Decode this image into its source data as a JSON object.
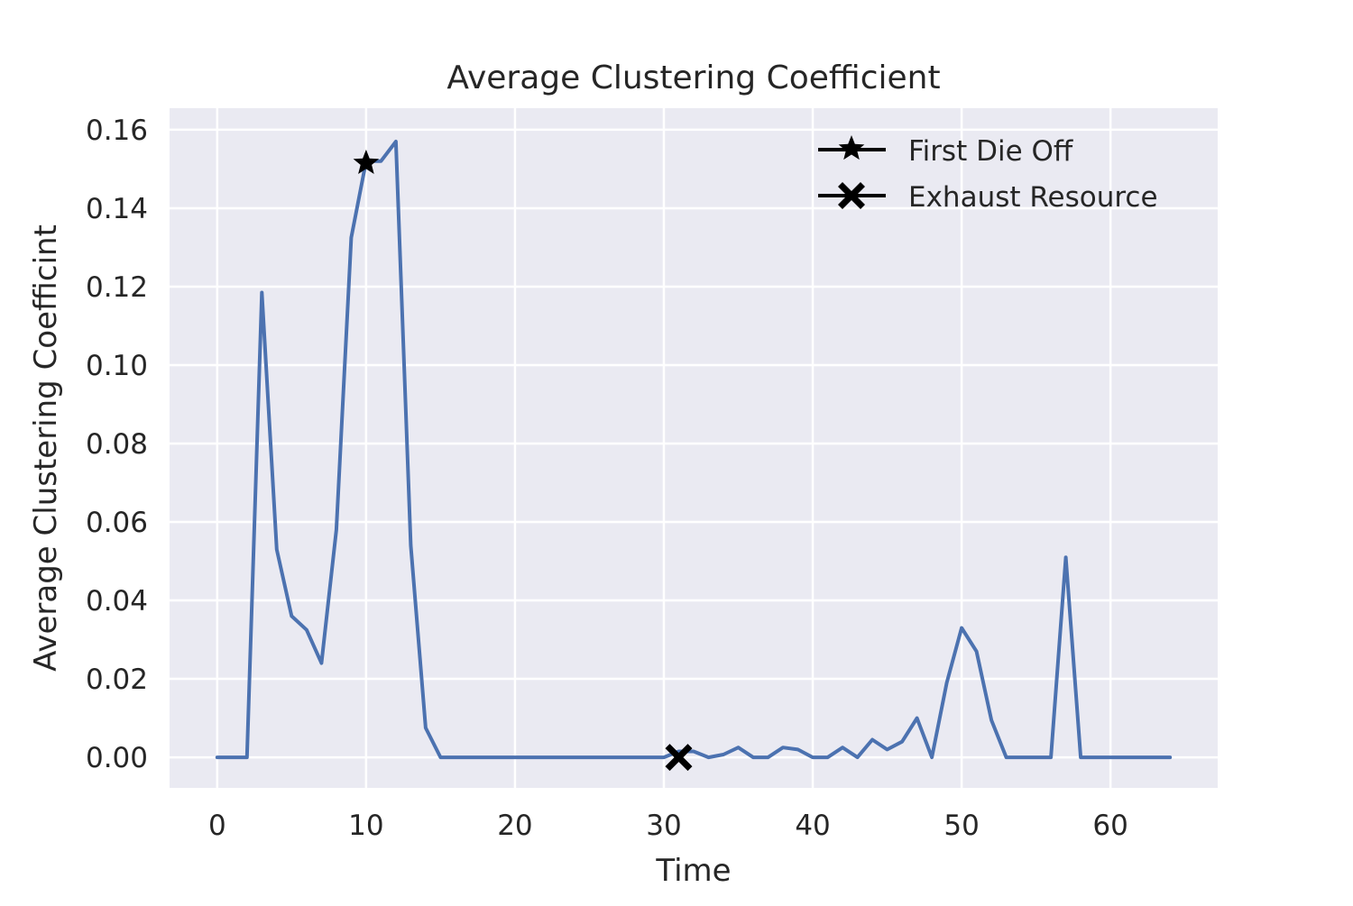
{
  "chart_data": {
    "type": "line",
    "title": "Average Clustering Coefficient",
    "xlabel": "Time",
    "ylabel": "Average Clustering Coefficint",
    "xlim": [
      -3.2,
      67.2
    ],
    "ylim": [
      -0.0078,
      0.1655
    ],
    "xticks": [
      0,
      10,
      20,
      30,
      40,
      50,
      60
    ],
    "xtick_labels": [
      "0",
      "10",
      "20",
      "30",
      "40",
      "50",
      "60"
    ],
    "yticks": [
      0.0,
      0.02,
      0.04,
      0.06,
      0.08,
      0.1,
      0.12,
      0.14,
      0.16
    ],
    "ytick_labels": [
      "0.00",
      "0.02",
      "0.04",
      "0.06",
      "0.08",
      "0.10",
      "0.12",
      "0.14",
      "0.16"
    ],
    "grid": true,
    "legend_position": "top-right",
    "colors": {
      "background": "#eaeaf2",
      "grid": "#ffffff",
      "line": "#4c72b0",
      "marker": "#000000"
    },
    "series": [
      {
        "x": [
          0,
          1,
          2,
          3,
          4,
          5,
          6,
          7,
          8,
          9,
          10,
          11,
          12,
          13,
          14,
          15,
          16,
          17,
          18,
          19,
          20,
          21,
          22,
          23,
          24,
          25,
          26,
          27,
          28,
          29,
          30,
          31,
          32,
          33,
          34,
          35,
          36,
          37,
          38,
          39,
          40,
          41,
          42,
          43,
          44,
          45,
          46,
          47,
          48,
          49,
          50,
          51,
          52,
          53,
          54,
          55,
          56,
          57,
          58,
          59,
          60,
          61,
          62,
          63,
          64
        ],
        "values": [
          0,
          0,
          0,
          0.1185,
          0.053,
          0.036,
          0.0325,
          0.024,
          0.058,
          0.1325,
          0.152,
          0.152,
          0.157,
          0.054,
          0.0075,
          0,
          0,
          0,
          0,
          0,
          0,
          0,
          0,
          0,
          0,
          0,
          0,
          0,
          0,
          0,
          0,
          0.0015,
          0.0015,
          0,
          0.0007,
          0.0025,
          0,
          0,
          0.0025,
          0.002,
          0,
          0,
          0.0025,
          0,
          0.0045,
          0.002,
          0.004,
          0.01,
          0,
          0.019,
          0.033,
          0.027,
          0.0095,
          0,
          0,
          0,
          0,
          0.051,
          0,
          0,
          0,
          0,
          0,
          0,
          0
        ]
      }
    ],
    "markers": [
      {
        "name": "First Die Off",
        "symbol": "star",
        "x": 10,
        "y": 0.1515
      },
      {
        "name": "Exhaust Resource",
        "symbol": "x",
        "x": 31,
        "y": 0.0
      }
    ]
  }
}
